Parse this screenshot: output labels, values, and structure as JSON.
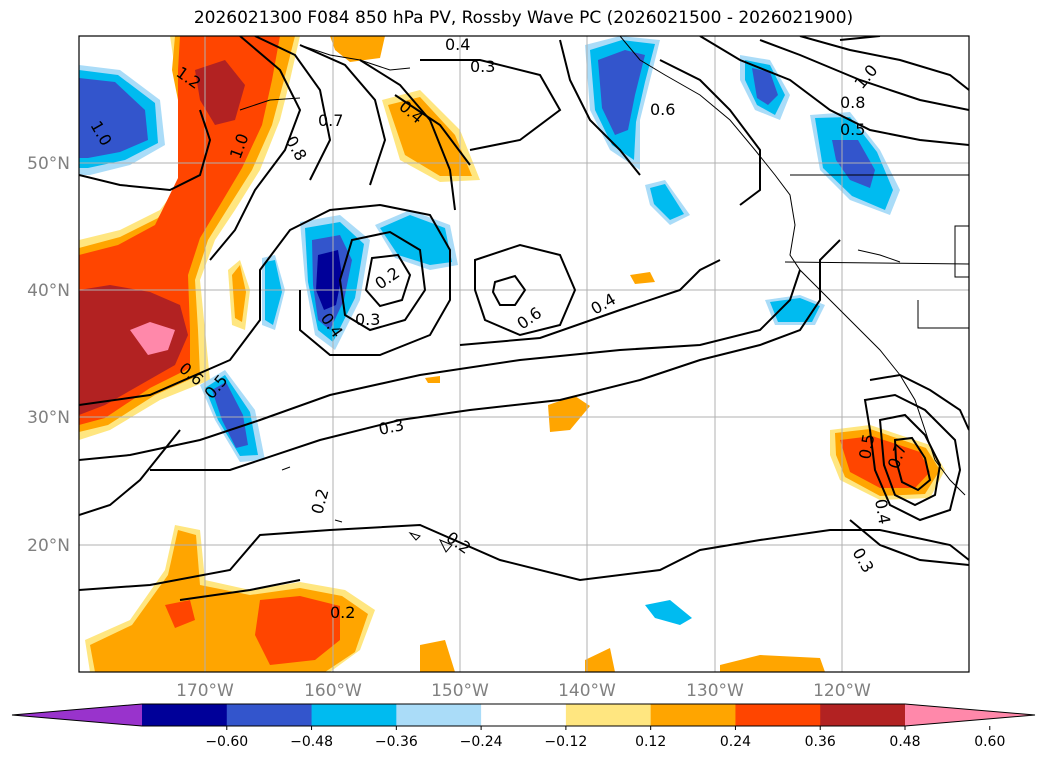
{
  "title": "2026021300 F084 850 hPa PV, Rossby Wave PC (2026021500 - 2026021900)",
  "map": {
    "lat_labels": [
      "50°N",
      "40°N",
      "30°N",
      "20°N"
    ],
    "lon_labels": [
      "170°W",
      "160°W",
      "150°W",
      "140°W",
      "130°W",
      "120°W"
    ],
    "contour_labels": [
      "0.4",
      "0.3",
      "1.2",
      "1.0",
      "0.7",
      "0.8",
      "0.4",
      "1.0",
      "0.6",
      "0.8",
      "0.5",
      "1.0",
      "0.2",
      "0.3",
      "0.4",
      "0.6",
      "0.4",
      "0.6",
      "0.5",
      "0.3",
      "0.2",
      "0.2",
      "0.2",
      "0.5",
      "0.7",
      "0.4",
      "0.3"
    ]
  },
  "colorbar": {
    "ticks": [
      "−0.60",
      "−0.48",
      "−0.36",
      "−0.24",
      "−0.12",
      "0.12",
      "0.24",
      "0.36",
      "0.48",
      "0.60"
    ],
    "colors": [
      "#9933cc",
      "#000099",
      "#3355cc",
      "#00bbf0",
      "#aadcf8",
      "#ffffff",
      "#ffe680",
      "#ffa500",
      "#ff4500",
      "#b22222",
      "#ff88aa"
    ]
  }
}
